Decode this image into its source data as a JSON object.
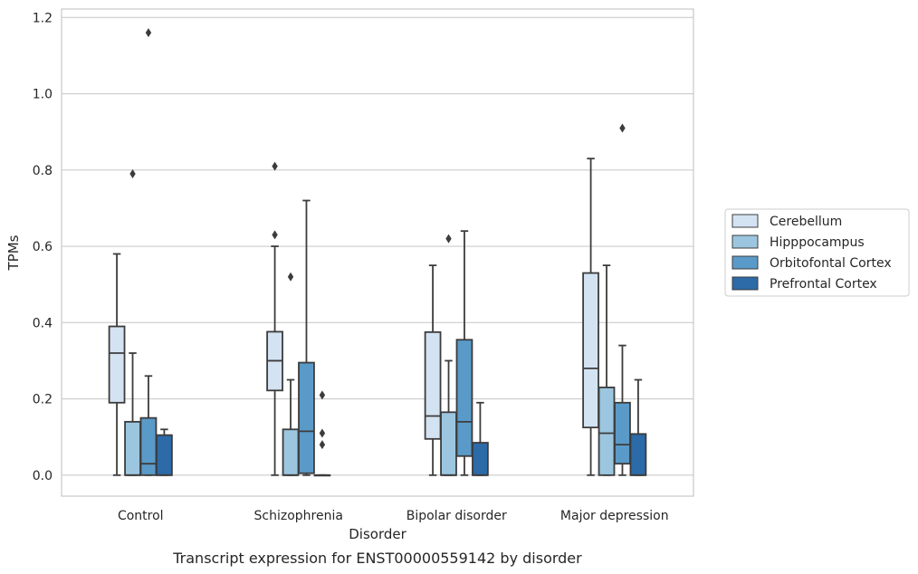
{
  "chart_data": {
    "type": "box",
    "title": "",
    "caption": "Transcript expression for ENST00000559142 by disorder",
    "xlabel": "Disorder",
    "ylabel": "TPMs",
    "ylim": [
      -0.055,
      1.222
    ],
    "yticks": [
      0.0,
      0.2,
      0.4,
      0.6,
      0.8,
      1.0,
      1.2
    ],
    "ytick_labels": [
      "0.0",
      "0.2",
      "0.4",
      "0.6",
      "0.8",
      "1.0",
      "1.2"
    ],
    "grid": "horizontal",
    "legend_position": "right",
    "categories": [
      "Control",
      "Schizophrenia",
      "Bipolar disorder",
      "Major depression"
    ],
    "series": [
      {
        "name": "Cerebellum",
        "color": "#d4e3f2",
        "boxes": [
          {
            "whisker_low": 0.0,
            "q1": 0.19,
            "median": 0.32,
            "q3": 0.39,
            "whisker_high": 0.58,
            "outliers": []
          },
          {
            "whisker_low": 0.0,
            "q1": 0.222,
            "median": 0.3,
            "q3": 0.376,
            "whisker_high": 0.6,
            "outliers": [
              0.63,
              0.81
            ]
          },
          {
            "whisker_low": 0.0,
            "q1": 0.095,
            "median": 0.155,
            "q3": 0.375,
            "whisker_high": 0.55,
            "outliers": []
          },
          {
            "whisker_low": 0.0,
            "q1": 0.125,
            "median": 0.28,
            "q3": 0.53,
            "whisker_high": 0.83,
            "outliers": []
          }
        ]
      },
      {
        "name": "Hipppocampus",
        "color": "#9cc6df",
        "boxes": [
          {
            "whisker_low": 0.0,
            "q1": 0.0,
            "median": 0.0,
            "q3": 0.14,
            "whisker_high": 0.32,
            "outliers": [
              0.79
            ]
          },
          {
            "whisker_low": 0.0,
            "q1": 0.0,
            "median": 0.0,
            "q3": 0.12,
            "whisker_high": 0.25,
            "outliers": [
              0.52
            ]
          },
          {
            "whisker_low": 0.0,
            "q1": 0.0,
            "median": 0.0,
            "q3": 0.165,
            "whisker_high": 0.3,
            "outliers": [
              0.62
            ]
          },
          {
            "whisker_low": 0.0,
            "q1": 0.0,
            "median": 0.11,
            "q3": 0.23,
            "whisker_high": 0.55,
            "outliers": []
          }
        ]
      },
      {
        "name": "Orbitofontal Cortex",
        "color": "#5a9ac8",
        "boxes": [
          {
            "whisker_low": 0.0,
            "q1": 0.0,
            "median": 0.03,
            "q3": 0.15,
            "whisker_high": 0.26,
            "outliers": [
              1.16
            ]
          },
          {
            "whisker_low": 0.0,
            "q1": 0.005,
            "median": 0.115,
            "q3": 0.295,
            "whisker_high": 0.72,
            "outliers": []
          },
          {
            "whisker_low": 0.0,
            "q1": 0.05,
            "median": 0.14,
            "q3": 0.355,
            "whisker_high": 0.64,
            "outliers": []
          },
          {
            "whisker_low": 0.0,
            "q1": 0.03,
            "median": 0.08,
            "q3": 0.19,
            "whisker_high": 0.34,
            "outliers": [
              0.91
            ]
          }
        ]
      },
      {
        "name": "Prefrontal Cortex",
        "color": "#2c6aa8",
        "boxes": [
          {
            "whisker_low": 0.0,
            "q1": 0.0,
            "median": 0.0,
            "q3": 0.105,
            "whisker_high": 0.12,
            "outliers": []
          },
          {
            "whisker_low": 0.0,
            "q1": 0.0,
            "median": 0.0,
            "q3": 0.0,
            "whisker_high": 0.0,
            "outliers": [
              0.08,
              0.11,
              0.21
            ]
          },
          {
            "whisker_low": 0.0,
            "q1": 0.0,
            "median": 0.0,
            "q3": 0.085,
            "whisker_high": 0.19,
            "outliers": []
          },
          {
            "whisker_low": 0.0,
            "q1": 0.0,
            "median": 0.0,
            "q3": 0.108,
            "whisker_high": 0.25,
            "outliers": []
          }
        ]
      }
    ]
  }
}
